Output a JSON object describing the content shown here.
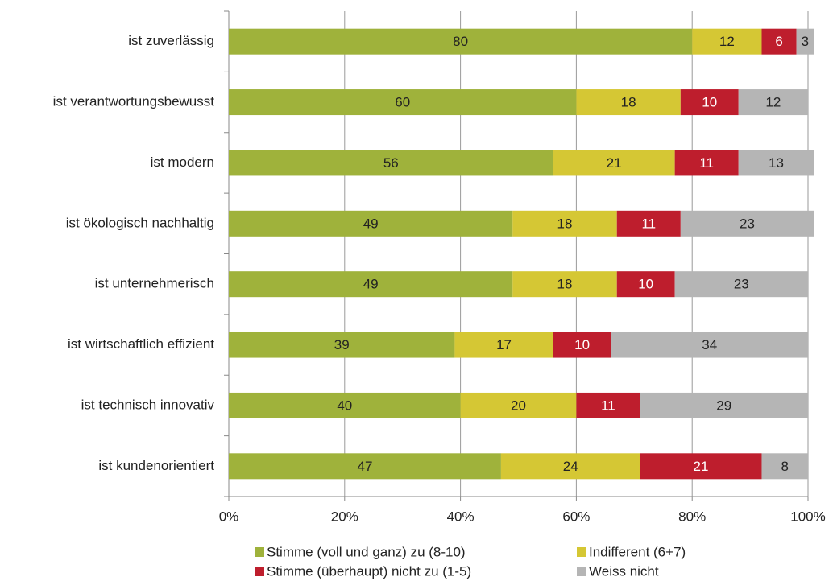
{
  "chart_data": {
    "type": "bar",
    "orientation": "horizontal",
    "stacked": true,
    "categories": [
      "ist zuverlässig",
      "ist verantwortungsbewusst",
      "ist modern",
      "ist ökologisch nachhaltig",
      "ist unternehmerisch",
      "ist wirtschaftlich effizient",
      "ist technisch innovativ",
      "ist kundenorientiert"
    ],
    "series": [
      {
        "name": "Stimme (voll und ganz) zu (8-10)",
        "color": "#9fb23b",
        "values": [
          80,
          60,
          56,
          49,
          49,
          39,
          40,
          47
        ]
      },
      {
        "name": "Indifferent (6+7)",
        "color": "#d5c734",
        "values": [
          12,
          18,
          21,
          18,
          18,
          17,
          20,
          24
        ]
      },
      {
        "name": "Stimme (überhaupt) nicht zu (1-5)",
        "color": "#be1e2d",
        "values": [
          6,
          10,
          11,
          11,
          10,
          10,
          11,
          21
        ]
      },
      {
        "name": "Weiss nicht",
        "color": "#b5b5b5",
        "values": [
          3,
          12,
          13,
          23,
          23,
          34,
          29,
          8
        ]
      }
    ],
    "xlim": [
      0,
      100
    ],
    "xticks": [
      {
        "value": 0,
        "label": "0%"
      },
      {
        "value": 20,
        "label": "20%"
      },
      {
        "value": 40,
        "label": "40%"
      },
      {
        "value": 60,
        "label": "60%"
      },
      {
        "value": 80,
        "label": "80%"
      },
      {
        "value": 100,
        "label": "100%"
      }
    ],
    "grid": true,
    "legend": "bottom"
  }
}
